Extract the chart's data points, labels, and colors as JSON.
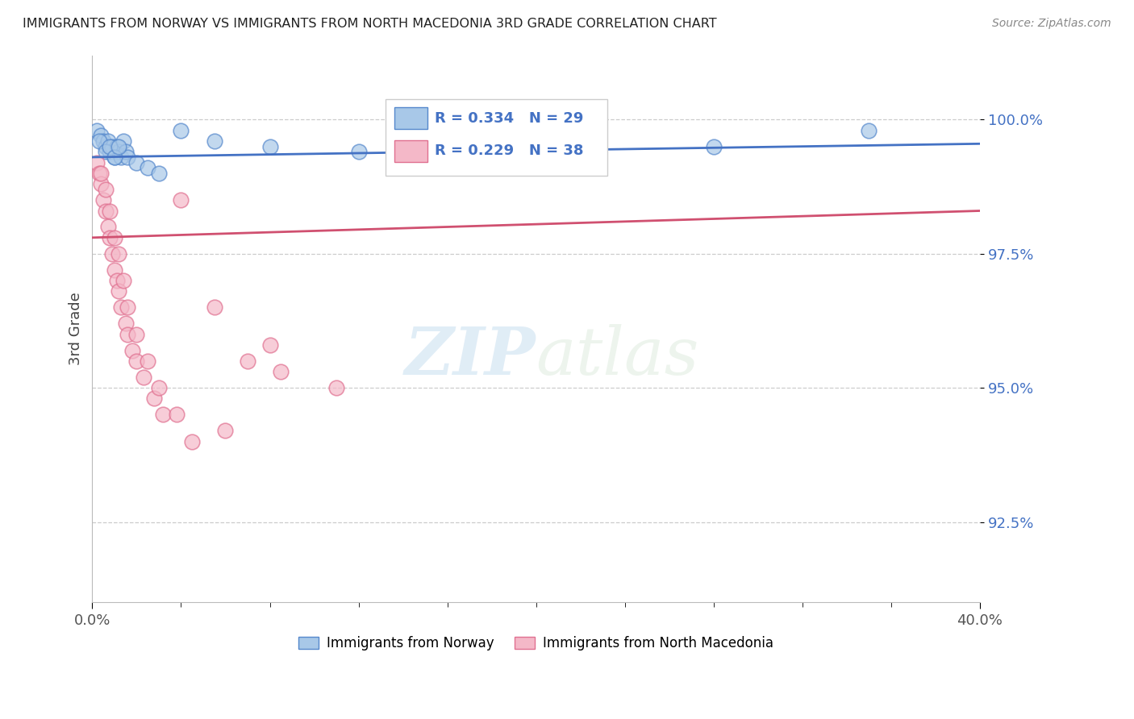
{
  "title": "IMMIGRANTS FROM NORWAY VS IMMIGRANTS FROM NORTH MACEDONIA 3RD GRADE CORRELATION CHART",
  "source": "Source: ZipAtlas.com",
  "ylabel": "3rd Grade",
  "y_ticks": [
    92.5,
    95.0,
    97.5,
    100.0
  ],
  "y_tick_labels": [
    "92.5%",
    "95.0%",
    "97.5%",
    "100.0%"
  ],
  "xlim": [
    0.0,
    40.0
  ],
  "ylim": [
    91.0,
    101.2
  ],
  "norway_color": "#a8c8e8",
  "macedonia_color": "#f4b8c8",
  "norway_edge_color": "#5588cc",
  "macedonia_edge_color": "#e07090",
  "norway_line_color": "#4472c4",
  "macedonia_line_color": "#d05070",
  "R_norway": 0.334,
  "N_norway": 29,
  "R_macedonia": 0.229,
  "N_macedonia": 38,
  "watermark_zip": "ZIP",
  "watermark_atlas": "atlas",
  "norway_x": [
    0.2,
    0.4,
    0.5,
    0.6,
    0.7,
    0.8,
    0.9,
    1.0,
    1.1,
    1.2,
    1.3,
    1.4,
    1.5,
    1.6,
    2.0,
    2.5,
    3.0,
    4.0,
    5.5,
    8.0,
    12.0,
    19.0,
    28.0,
    35.0,
    0.3,
    0.6,
    0.8,
    1.0,
    1.2
  ],
  "norway_y": [
    99.8,
    99.7,
    99.6,
    99.5,
    99.6,
    99.4,
    99.5,
    99.3,
    99.5,
    99.4,
    99.3,
    99.6,
    99.4,
    99.3,
    99.2,
    99.1,
    99.0,
    99.8,
    99.6,
    99.5,
    99.4,
    99.7,
    99.5,
    99.8,
    99.6,
    99.4,
    99.5,
    99.3,
    99.5
  ],
  "macedonia_x": [
    0.2,
    0.3,
    0.4,
    0.5,
    0.6,
    0.7,
    0.8,
    0.9,
    1.0,
    1.1,
    1.2,
    1.3,
    1.5,
    1.6,
    1.8,
    2.0,
    2.3,
    2.8,
    3.2,
    4.0,
    5.5,
    7.0,
    8.5,
    0.4,
    0.6,
    0.8,
    1.0,
    1.2,
    1.4,
    1.6,
    2.0,
    2.5,
    3.0,
    3.8,
    4.5,
    6.0,
    8.0,
    11.0
  ],
  "macedonia_y": [
    99.2,
    99.0,
    98.8,
    98.5,
    98.3,
    98.0,
    97.8,
    97.5,
    97.2,
    97.0,
    96.8,
    96.5,
    96.2,
    96.0,
    95.7,
    95.5,
    95.2,
    94.8,
    94.5,
    98.5,
    96.5,
    95.5,
    95.3,
    99.0,
    98.7,
    98.3,
    97.8,
    97.5,
    97.0,
    96.5,
    96.0,
    95.5,
    95.0,
    94.5,
    94.0,
    94.2,
    95.8,
    95.0
  ],
  "norway_trend_x": [
    0.0,
    40.0
  ],
  "norway_trend_y": [
    99.3,
    99.55
  ],
  "macedonia_trend_x": [
    0.0,
    40.0
  ],
  "macedonia_trend_y": [
    97.8,
    98.3
  ]
}
